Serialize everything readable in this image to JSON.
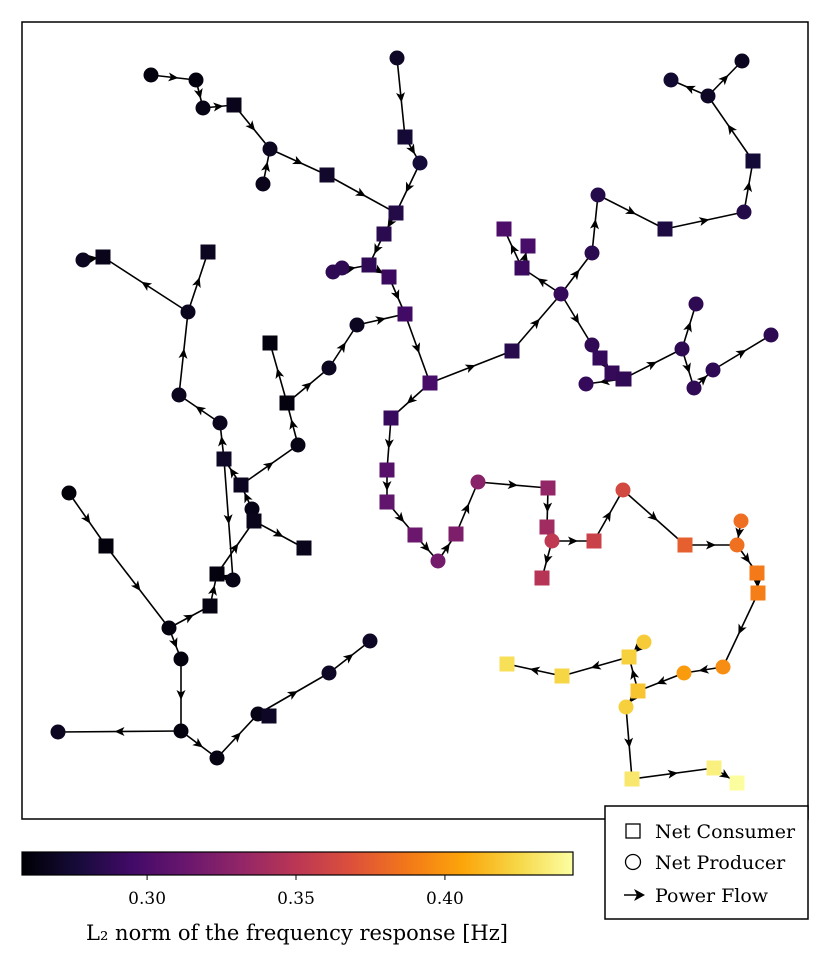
{
  "legend": {
    "consumer": "Net Consumer",
    "producer": "Net Producer",
    "flow": "Power Flow"
  },
  "colorbar": {
    "title": "L₂ norm of the frequency response [Hz]",
    "ticks": [
      {
        "value": 0.3,
        "label": "0.30"
      },
      {
        "value": 0.35,
        "label": "0.35"
      },
      {
        "value": 0.4,
        "label": "0.40"
      }
    ],
    "range": [
      0.258,
      0.443
    ],
    "colormap": "inferno"
  },
  "network": {
    "nodes": [
      {
        "id": "A1",
        "kind": "producer",
        "v": 0.262
      },
      {
        "id": "A2",
        "kind": "producer",
        "v": 0.262
      },
      {
        "id": "A3",
        "kind": "producer",
        "v": 0.264
      },
      {
        "id": "A4",
        "kind": "consumer",
        "v": 0.266
      },
      {
        "id": "A5",
        "kind": "producer",
        "v": 0.268
      },
      {
        "id": "A6",
        "kind": "producer",
        "v": 0.266
      },
      {
        "id": "A7",
        "kind": "consumer",
        "v": 0.272
      },
      {
        "id": "B1",
        "kind": "producer",
        "v": 0.27
      },
      {
        "id": "B2",
        "kind": "consumer",
        "v": 0.275
      },
      {
        "id": "B3",
        "kind": "producer",
        "v": 0.276
      },
      {
        "id": "B4",
        "kind": "consumer",
        "v": 0.282
      },
      {
        "id": "B5",
        "kind": "consumer",
        "v": 0.285
      },
      {
        "id": "B6",
        "kind": "producer",
        "v": 0.286
      },
      {
        "id": "B7",
        "kind": "producer",
        "v": 0.287
      },
      {
        "id": "B8",
        "kind": "consumer",
        "v": 0.288
      },
      {
        "id": "B9",
        "kind": "consumer",
        "v": 0.292
      },
      {
        "id": "B10",
        "kind": "consumer",
        "v": 0.294
      },
      {
        "id": "C1",
        "kind": "producer",
        "v": 0.268
      },
      {
        "id": "C2",
        "kind": "producer",
        "v": 0.27
      },
      {
        "id": "C3",
        "kind": "producer",
        "v": 0.274
      },
      {
        "id": "C4",
        "kind": "consumer",
        "v": 0.276
      },
      {
        "id": "C5",
        "kind": "producer",
        "v": 0.282
      },
      {
        "id": "C6",
        "kind": "consumer",
        "v": 0.28
      },
      {
        "id": "C7",
        "kind": "producer",
        "v": 0.283
      },
      {
        "id": "C8",
        "kind": "producer",
        "v": 0.285
      },
      {
        "id": "D1",
        "kind": "consumer",
        "v": 0.3
      },
      {
        "id": "D2",
        "kind": "consumer",
        "v": 0.298
      },
      {
        "id": "D3",
        "kind": "consumer",
        "v": 0.298
      },
      {
        "id": "D4",
        "kind": "consumer",
        "v": 0.291
      },
      {
        "id": "D5",
        "kind": "producer",
        "v": 0.288
      },
      {
        "id": "D6",
        "kind": "producer",
        "v": 0.29
      },
      {
        "id": "D7",
        "kind": "consumer",
        "v": 0.292
      },
      {
        "id": "D8",
        "kind": "producer",
        "v": 0.287
      },
      {
        "id": "D9",
        "kind": "producer",
        "v": 0.286
      },
      {
        "id": "D10",
        "kind": "producer",
        "v": 0.286
      },
      {
        "id": "D11",
        "kind": "consumer",
        "v": 0.288
      },
      {
        "id": "D12",
        "kind": "consumer",
        "v": 0.289
      },
      {
        "id": "D13",
        "kind": "consumer",
        "v": 0.29
      },
      {
        "id": "D14",
        "kind": "producer",
        "v": 0.287
      },
      {
        "id": "D15",
        "kind": "producer",
        "v": 0.288
      },
      {
        "id": "D16",
        "kind": "producer",
        "v": 0.286
      },
      {
        "id": "D17",
        "kind": "consumer",
        "v": 0.288
      },
      {
        "id": "D18",
        "kind": "producer",
        "v": 0.29
      },
      {
        "id": "D19",
        "kind": "consumer",
        "v": 0.284
      },
      {
        "id": "D20",
        "kind": "producer",
        "v": 0.28
      },
      {
        "id": "D21",
        "kind": "producer",
        "v": 0.276
      },
      {
        "id": "D22",
        "kind": "consumer",
        "v": 0.278
      },
      {
        "id": "D23",
        "kind": "consumer",
        "v": 0.277
      },
      {
        "id": "E1",
        "kind": "consumer",
        "v": 0.305
      },
      {
        "id": "E2",
        "kind": "consumer",
        "v": 0.31
      },
      {
        "id": "E3",
        "kind": "consumer",
        "v": 0.314
      },
      {
        "id": "E4",
        "kind": "producer",
        "v": 0.318
      },
      {
        "id": "E5",
        "kind": "consumer",
        "v": 0.322
      },
      {
        "id": "E6",
        "kind": "producer",
        "v": 0.327
      },
      {
        "id": "E7",
        "kind": "consumer",
        "v": 0.332
      },
      {
        "id": "E8",
        "kind": "consumer",
        "v": 0.338
      },
      {
        "id": "E9",
        "kind": "consumer",
        "v": 0.348
      },
      {
        "id": "E10",
        "kind": "producer",
        "v": 0.352
      },
      {
        "id": "E11",
        "kind": "producer",
        "v": 0.352
      },
      {
        "id": "E12",
        "kind": "consumer",
        "v": 0.351
      },
      {
        "id": "E13",
        "kind": "consumer",
        "v": 0.358
      },
      {
        "id": "E14",
        "kind": "producer",
        "v": 0.363
      },
      {
        "id": "E15",
        "kind": "consumer",
        "v": 0.376
      },
      {
        "id": "E16",
        "kind": "producer",
        "v": 0.384
      },
      {
        "id": "E17",
        "kind": "producer",
        "v": 0.383
      },
      {
        "id": "E18",
        "kind": "consumer",
        "v": 0.388
      },
      {
        "id": "E19",
        "kind": "consumer",
        "v": 0.39
      },
      {
        "id": "E20",
        "kind": "producer",
        "v": 0.396
      },
      {
        "id": "E21",
        "kind": "producer",
        "v": 0.402
      },
      {
        "id": "F1",
        "kind": "consumer",
        "v": 0.418
      },
      {
        "id": "F2",
        "kind": "producer",
        "v": 0.42
      },
      {
        "id": "F3",
        "kind": "consumer",
        "v": 0.422
      },
      {
        "id": "F4",
        "kind": "consumer",
        "v": 0.424
      },
      {
        "id": "F5",
        "kind": "producer",
        "v": 0.422
      },
      {
        "id": "F6",
        "kind": "consumer",
        "v": 0.428
      },
      {
        "id": "F7",
        "kind": "producer",
        "v": 0.426
      },
      {
        "id": "F8",
        "kind": "consumer",
        "v": 0.432
      },
      {
        "id": "F9",
        "kind": "consumer",
        "v": 0.436
      },
      {
        "id": "F10",
        "kind": "consumer",
        "v": 0.442
      },
      {
        "id": "G1",
        "kind": "producer",
        "v": 0.26
      },
      {
        "id": "G2",
        "kind": "consumer",
        "v": 0.261
      },
      {
        "id": "G3",
        "kind": "producer",
        "v": 0.262
      },
      {
        "id": "G4",
        "kind": "producer",
        "v": 0.262
      },
      {
        "id": "G5",
        "kind": "consumer",
        "v": 0.263
      },
      {
        "id": "G6",
        "kind": "consumer",
        "v": 0.262
      },
      {
        "id": "G7",
        "kind": "producer",
        "v": 0.264
      },
      {
        "id": "G8",
        "kind": "producer",
        "v": 0.265
      },
      {
        "id": "G9",
        "kind": "consumer",
        "v": 0.266
      },
      {
        "id": "G10",
        "kind": "consumer",
        "v": 0.266
      },
      {
        "id": "G11",
        "kind": "producer",
        "v": 0.264
      },
      {
        "id": "G12",
        "kind": "consumer",
        "v": 0.262
      },
      {
        "id": "G13",
        "kind": "consumer",
        "v": 0.262
      },
      {
        "id": "G14",
        "kind": "producer",
        "v": 0.262
      },
      {
        "id": "G15",
        "kind": "producer",
        "v": 0.263
      },
      {
        "id": "G16",
        "kind": "producer",
        "v": 0.264
      },
      {
        "id": "H1",
        "kind": "producer",
        "v": 0.268
      },
      {
        "id": "H2",
        "kind": "consumer",
        "v": 0.266
      },
      {
        "id": "H3",
        "kind": "producer",
        "v": 0.267
      },
      {
        "id": "H4",
        "kind": "consumer",
        "v": 0.268
      },
      {
        "id": "H5",
        "kind": "producer",
        "v": 0.267
      },
      {
        "id": "H6",
        "kind": "producer",
        "v": 0.267
      },
      {
        "id": "H7",
        "kind": "consumer",
        "v": 0.27
      },
      {
        "id": "H8",
        "kind": "consumer",
        "v": 0.268
      },
      {
        "id": "H9",
        "kind": "producer",
        "v": 0.268
      },
      {
        "id": "H10",
        "kind": "producer",
        "v": 0.268
      },
      {
        "id": "H11",
        "kind": "producer",
        "v": 0.268
      },
      {
        "id": "H12",
        "kind": "consumer",
        "v": 0.27
      },
      {
        "id": "H13",
        "kind": "consumer",
        "v": 0.268
      },
      {
        "id": "H14",
        "kind": "producer",
        "v": 0.27
      },
      {
        "id": "H15",
        "kind": "producer",
        "v": 0.27
      },
      {
        "id": "H16",
        "kind": "consumer",
        "v": 0.27
      },
      {
        "id": "H17",
        "kind": "consumer",
        "v": 0.268
      },
      {
        "id": "H18",
        "kind": "producer",
        "v": 0.268
      },
      {
        "id": "H19",
        "kind": "producer",
        "v": 0.268
      }
    ],
    "edges": [
      [
        "A1",
        "A2"
      ],
      [
        "A2",
        "A3"
      ],
      [
        "A3",
        "A4"
      ],
      [
        "A4",
        "A5"
      ],
      [
        "A6",
        "A5"
      ],
      [
        "A5",
        "A7"
      ],
      [
        "A7",
        "B4"
      ],
      [
        "B1",
        "B3"
      ],
      [
        "B2",
        "B3"
      ],
      [
        "B3",
        "B4"
      ],
      [
        "B4",
        "B5"
      ],
      [
        "B5",
        "B6"
      ],
      [
        "B6",
        "B7"
      ],
      [
        "B7",
        "B8"
      ],
      [
        "B7",
        "B9"
      ],
      [
        "B9",
        "B10"
      ],
      [
        "B8",
        "B10"
      ],
      [
        "C1",
        "C2"
      ],
      [
        "C3",
        "C2"
      ],
      [
        "C2",
        "C4"
      ],
      [
        "C4",
        "C5"
      ],
      [
        "C5",
        "C6"
      ],
      [
        "C7",
        "C6"
      ],
      [
        "C6",
        "C8"
      ],
      [
        "C8",
        "D13"
      ],
      [
        "D13",
        "D12"
      ],
      [
        "D12",
        "D11"
      ],
      [
        "D11",
        "D10"
      ],
      [
        "D9",
        "D10"
      ],
      [
        "B10",
        "D11"
      ],
      [
        "D12",
        "D3"
      ],
      [
        "D3",
        "D4"
      ],
      [
        "D4",
        "D20"
      ],
      [
        "D20",
        "D19"
      ],
      [
        "D21",
        "D19"
      ],
      [
        "D19",
        "D23"
      ],
      [
        "D19",
        "D22"
      ],
      [
        "D19",
        "D5"
      ],
      [
        "D5",
        "D6"
      ],
      [
        "D6",
        "D1"
      ],
      [
        "D6",
        "D7"
      ],
      [
        "D8",
        "D6"
      ],
      [
        "D14",
        "D15"
      ],
      [
        "D15",
        "D16"
      ],
      [
        "D16",
        "D17"
      ],
      [
        "D17",
        "D18"
      ],
      [
        "D4",
        "E1"
      ],
      [
        "E1",
        "E2"
      ],
      [
        "E2",
        "E3"
      ],
      [
        "E3",
        "E4"
      ],
      [
        "E4",
        "E5"
      ],
      [
        "E5",
        "E6"
      ],
      [
        "E6",
        "E7"
      ],
      [
        "E7",
        "E8"
      ],
      [
        "E8",
        "E9"
      ],
      [
        "E9",
        "E10"
      ],
      [
        "E10",
        "E11"
      ],
      [
        "E11",
        "E12"
      ],
      [
        "E11",
        "E13"
      ],
      [
        "E13",
        "E14"
      ],
      [
        "E14",
        "E15"
      ],
      [
        "E15",
        "E16"
      ],
      [
        "E17",
        "E16"
      ],
      [
        "E16",
        "E18"
      ],
      [
        "E18",
        "E19"
      ],
      [
        "E19",
        "E20"
      ],
      [
        "E20",
        "E21"
      ],
      [
        "E21",
        "F1"
      ],
      [
        "F1",
        "F2"
      ],
      [
        "F2",
        "F3"
      ],
      [
        "F4",
        "F3"
      ],
      [
        "F3",
        "F5"
      ],
      [
        "F5",
        "F6"
      ],
      [
        "F3",
        "F7"
      ],
      [
        "F5",
        "F8"
      ],
      [
        "F8",
        "F9"
      ],
      [
        "F9",
        "F10"
      ],
      [
        "G1",
        "G2"
      ],
      [
        "G2",
        "G3"
      ],
      [
        "G3",
        "G4"
      ],
      [
        "G4",
        "G5"
      ],
      [
        "G5",
        "G6"
      ],
      [
        "G6",
        "G7"
      ],
      [
        "G8",
        "G9"
      ],
      [
        "G9",
        "G10"
      ],
      [
        "G10",
        "G11"
      ],
      [
        "G11",
        "G12"
      ],
      [
        "G12",
        "G13"
      ],
      [
        "G14",
        "G15"
      ],
      [
        "G15",
        "G16"
      ],
      [
        "G16",
        "G13"
      ],
      [
        "H1",
        "H2"
      ],
      [
        "H2",
        "H3"
      ],
      [
        "H3",
        "H4"
      ],
      [
        "H4",
        "H5"
      ],
      [
        "H5",
        "H6"
      ],
      [
        "H6",
        "H7"
      ],
      [
        "H6",
        "H8"
      ],
      [
        "H9",
        "H8"
      ],
      [
        "H8",
        "H10"
      ],
      [
        "H10",
        "H11"
      ],
      [
        "H11",
        "H12"
      ],
      [
        "H12",
        "H13"
      ],
      [
        "H14",
        "H15"
      ],
      [
        "H15",
        "H16"
      ],
      [
        "H16",
        "H17"
      ],
      [
        "H18",
        "H17"
      ],
      [
        "H17",
        "H19"
      ]
    ]
  }
}
